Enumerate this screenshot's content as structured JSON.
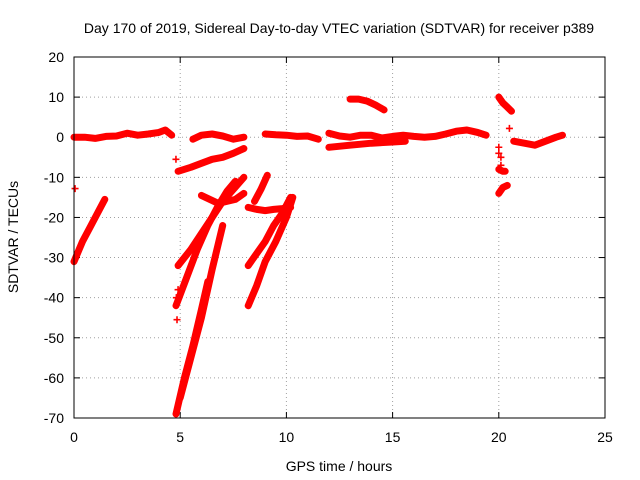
{
  "chart_data": {
    "type": "scatter",
    "title": "Day 170 of 2019, Sidereal Day-to-day VTEC variation (SDTVAR) for receiver p389",
    "xlabel": "GPS time / hours",
    "ylabel": "SDTVAR / TECUs",
    "xlim": [
      0,
      25
    ],
    "ylim": [
      -70,
      20
    ],
    "xticks": [
      0,
      5,
      10,
      15,
      20,
      25
    ],
    "yticks": [
      -70,
      -60,
      -50,
      -40,
      -30,
      -20,
      -10,
      0,
      10,
      20
    ],
    "grid": true,
    "marker": "+",
    "color": "#ff0000",
    "segments": [
      {
        "name": "baseline-1",
        "x": [
          0.0,
          0.5,
          1.0,
          1.5,
          2.0,
          2.5,
          3.0,
          3.5,
          4.0,
          4.3,
          4.6
        ],
        "y": [
          0,
          0,
          -0.3,
          0.2,
          0.3,
          1.0,
          0.5,
          0.8,
          1.2,
          1.8,
          0.5
        ]
      },
      {
        "name": "baseline-2",
        "x": [
          5.6,
          6.0,
          6.5,
          7.0,
          7.5,
          8.0
        ],
        "y": [
          -0.5,
          0.5,
          0.8,
          0.3,
          -0.5,
          0
        ]
      },
      {
        "name": "baseline-3",
        "x": [
          9.0,
          9.5,
          10.0,
          10.5,
          11.0,
          11.5
        ],
        "y": [
          0.8,
          0.6,
          0.5,
          0.2,
          0.3,
          -0.5
        ]
      },
      {
        "name": "baseline-4",
        "x": [
          12.0,
          12.5,
          13.0,
          13.5,
          14.0,
          14.5,
          15.0,
          15.5,
          16.0,
          16.5,
          17.0,
          17.5,
          18.0,
          18.5,
          19.0,
          19.4
        ],
        "y": [
          1.0,
          0.3,
          0,
          0.5,
          0.5,
          -0.2,
          0.2,
          0.5,
          0.2,
          0,
          0.2,
          0.8,
          1.5,
          1.8,
          1.2,
          0.5
        ]
      },
      {
        "name": "baseline-5",
        "x": [
          20.7,
          21.2,
          21.7,
          22.2,
          22.7,
          23.0
        ],
        "y": [
          -1.0,
          -1.5,
          -2.0,
          -1.0,
          0,
          0.5
        ]
      },
      {
        "name": "arc-13-14",
        "x": [
          13.0,
          13.4,
          13.8,
          14.2,
          14.6
        ],
        "y": [
          9.5,
          9.5,
          9.0,
          8.0,
          6.8
        ]
      },
      {
        "name": "descending-12-16",
        "x": [
          12.0,
          13.0,
          14.0,
          15.0,
          15.6
        ],
        "y": [
          -2.5,
          -2.0,
          -1.5,
          -1.2,
          -1.0
        ]
      },
      {
        "name": "drop-20",
        "x": [
          20.0,
          20.2,
          20.4,
          20.6
        ],
        "y": [
          10,
          8.5,
          7.5,
          6.5
        ]
      },
      {
        "name": "rise-0-1",
        "x": [
          0.0,
          0.4,
          0.8,
          1.2,
          1.45
        ],
        "y": [
          -31,
          -26,
          -22,
          -18,
          -15.5
        ]
      },
      {
        "name": "rise-5-8",
        "x": [
          4.9,
          5.5,
          6.0,
          6.5,
          7.0,
          7.5,
          8.0
        ],
        "y": [
          -8.5,
          -7.5,
          -6.5,
          -5.5,
          -5.0,
          -4.0,
          -2.8
        ]
      },
      {
        "name": "fan-a",
        "x": [
          4.9,
          5.5,
          6.0,
          6.5,
          7.0,
          7.5,
          8.0
        ],
        "y": [
          -32,
          -28,
          -24,
          -20,
          -16,
          -13,
          -10
        ]
      },
      {
        "name": "fan-b",
        "x": [
          4.8,
          5.3,
          5.8,
          6.3,
          6.8,
          7.2,
          7.6
        ],
        "y": [
          -42,
          -35,
          -28,
          -22,
          -17,
          -13.5,
          -11
        ]
      },
      {
        "name": "fan-c",
        "x": [
          4.8,
          5.2,
          5.6,
          6.0,
          6.3
        ],
        "y": [
          -69,
          -60,
          -52,
          -43,
          -36
        ]
      },
      {
        "name": "fan-d",
        "x": [
          5.0,
          5.5,
          6.0,
          6.5,
          7.0
        ],
        "y": [
          -65,
          -55,
          -45,
          -33,
          -22
        ]
      },
      {
        "name": "hump-6-7",
        "x": [
          6.0,
          6.4,
          6.8,
          7.2,
          7.6,
          8.0
        ],
        "y": [
          -14.5,
          -15.5,
          -16.5,
          -16.0,
          -15.5,
          -14.0
        ]
      },
      {
        "name": "fan-e",
        "x": [
          8.2,
          8.6,
          9.0,
          9.4,
          9.8,
          10.2
        ],
        "y": [
          -32,
          -29,
          -26,
          -22,
          -19,
          -15
        ]
      },
      {
        "name": "fan-f",
        "x": [
          8.2,
          8.6,
          9.0,
          9.5,
          10.0,
          10.3
        ],
        "y": [
          -42,
          -37,
          -31,
          -26,
          -20,
          -15
        ]
      },
      {
        "name": "flat-8-10",
        "x": [
          8.2,
          8.6,
          9.0,
          9.4,
          9.8,
          10.2
        ],
        "y": [
          -17.5,
          -18,
          -18.3,
          -18,
          -17.8,
          -17.5
        ]
      },
      {
        "name": "short-8-9",
        "x": [
          8.5,
          8.8,
          9.1
        ],
        "y": [
          -16,
          -13,
          -9.5
        ]
      },
      {
        "name": "scatter-20",
        "x": [
          20.0,
          20.2,
          20.4
        ],
        "y": [
          -14,
          -12.5,
          -12
        ]
      },
      {
        "name": "scatter-20b",
        "x": [
          20.0,
          20.2,
          20.3
        ],
        "y": [
          -8,
          -8.5,
          -8.5
        ]
      }
    ],
    "isolated_points": {
      "x": [
        0.05,
        4.8,
        4.85,
        4.82,
        4.9,
        20.0,
        20.1,
        20.5,
        20.0,
        20.1
      ],
      "y": [
        -12.8,
        -5.5,
        -45.5,
        -40,
        -38,
        -4,
        -7,
        2.2,
        -2.5,
        -5.0
      ]
    }
  }
}
